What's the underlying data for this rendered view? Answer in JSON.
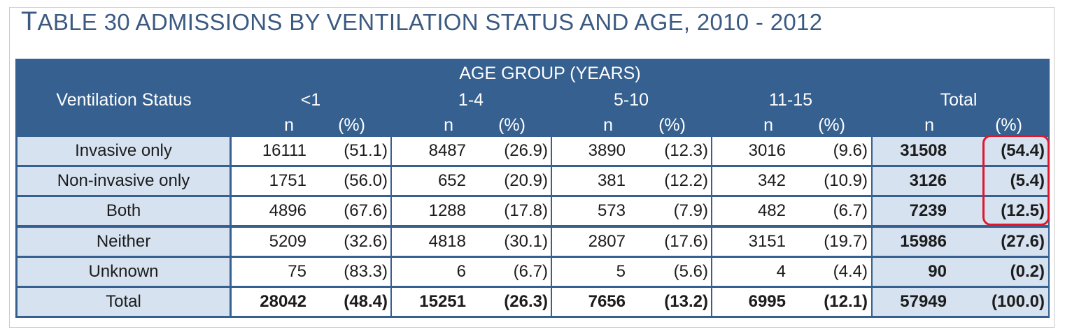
{
  "title": {
    "first_letter": "T",
    "rest": "ABLE 30 ADMISSIONS BY VENTILATION STATUS AND AGE, 2010 - 2012"
  },
  "header": {
    "row_label": "Ventilation Status",
    "span_label": "AGE GROUP (YEARS)",
    "groups": [
      "<1",
      "1-4",
      "5-10",
      "11-15",
      "Total"
    ],
    "n_label": "n",
    "pct_label": "(%)"
  },
  "rows": [
    {
      "label": "Invasive only",
      "values": [
        [
          "16111",
          "(51.1)"
        ],
        [
          "8487",
          "(26.9)"
        ],
        [
          "3890",
          "(12.3)"
        ],
        [
          "3016",
          "(9.6)"
        ],
        [
          "31508",
          "(54.4)"
        ]
      ]
    },
    {
      "label": "Non-invasive only",
      "values": [
        [
          "1751",
          "(56.0)"
        ],
        [
          "652",
          "(20.9)"
        ],
        [
          "381",
          "(12.2)"
        ],
        [
          "342",
          "(10.9)"
        ],
        [
          "3126",
          "(5.4)"
        ]
      ]
    },
    {
      "label": "Both",
      "values": [
        [
          "4896",
          "(67.6)"
        ],
        [
          "1288",
          "(17.8)"
        ],
        [
          "573",
          "(7.9)"
        ],
        [
          "482",
          "(6.7)"
        ],
        [
          "7239",
          "(12.5)"
        ]
      ]
    },
    {
      "label": "Neither",
      "values": [
        [
          "5209",
          "(32.6)"
        ],
        [
          "4818",
          "(30.1)"
        ],
        [
          "2807",
          "(17.6)"
        ],
        [
          "3151",
          "(19.7)"
        ],
        [
          "15986",
          "(27.6)"
        ]
      ]
    },
    {
      "label": "Unknown",
      "values": [
        [
          "75",
          "(83.3)"
        ],
        [
          "6",
          "(6.7)"
        ],
        [
          "5",
          "(5.6)"
        ],
        [
          "4",
          "(4.4)"
        ],
        [
          "90",
          "(0.2)"
        ]
      ]
    },
    {
      "label": "Total",
      "values": [
        [
          "28042",
          "(48.4)"
        ],
        [
          "15251",
          "(26.3)"
        ],
        [
          "7656",
          "(13.2)"
        ],
        [
          "6995",
          "(12.1)"
        ],
        [
          "57949",
          "(100.0)"
        ]
      ]
    }
  ],
  "colors": {
    "header_bg": "#35608f",
    "label_bg": "#d6e2f0",
    "title": "#3b5a82",
    "highlight": "#e3162c"
  }
}
